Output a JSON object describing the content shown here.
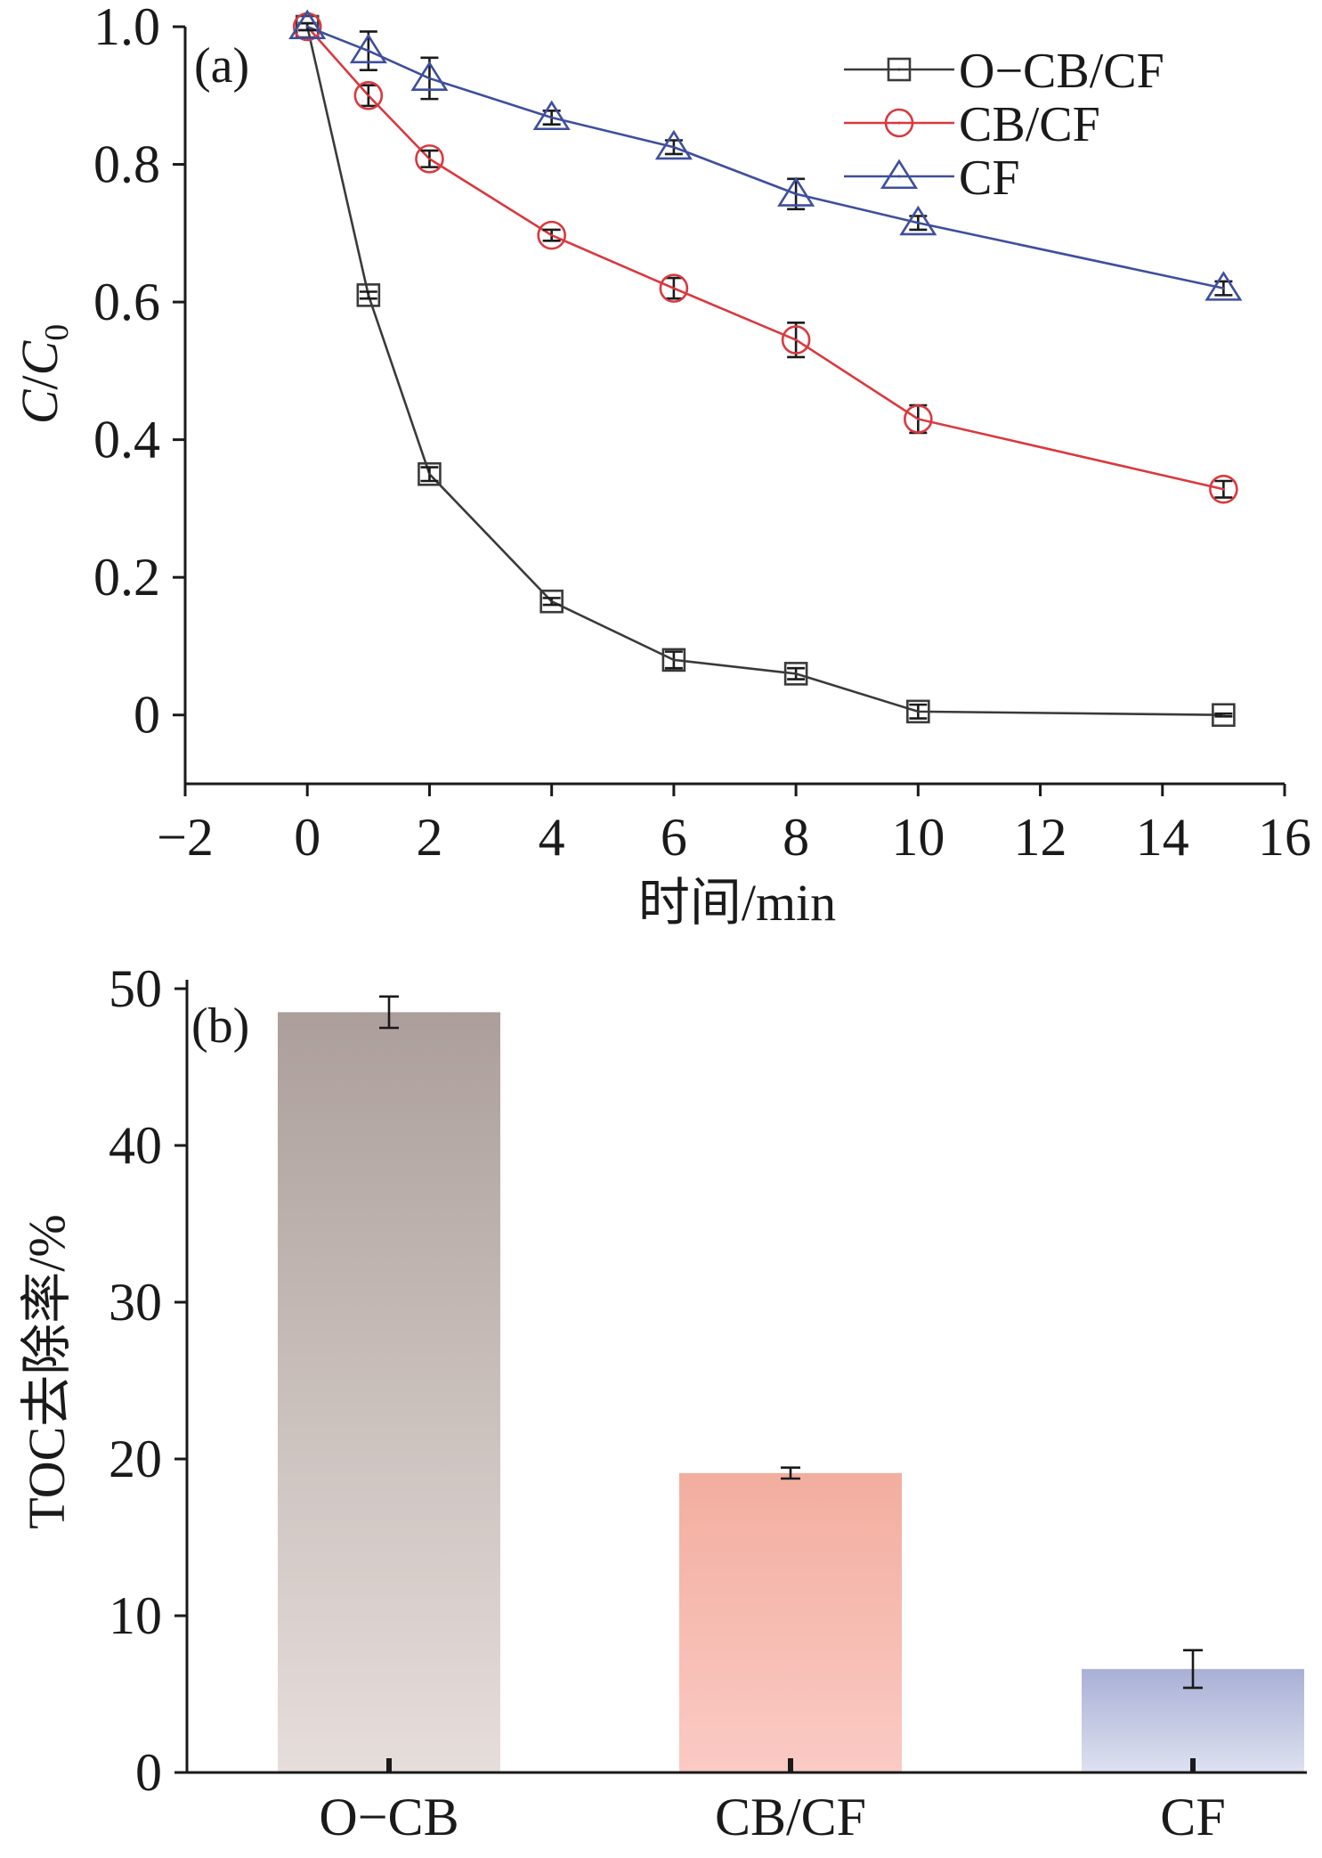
{
  "chart_data": [
    {
      "type": "line",
      "panel_label": "(a)",
      "xlabel": "时间/min",
      "ylabel": {
        "main": "C",
        "sep": "/",
        "sub_base": "C",
        "sub": "0"
      },
      "xlim": [
        -2,
        16
      ],
      "ylim": [
        -0.1,
        1.0
      ],
      "xticks": [
        -2,
        0,
        2,
        4,
        6,
        8,
        10,
        12,
        14,
        16
      ],
      "xtick_labels": [
        "−2",
        "0",
        "2",
        "4",
        "6",
        "8",
        "10",
        "12",
        "14",
        "16"
      ],
      "yticks": [
        0,
        0.2,
        0.4,
        0.6,
        0.8,
        1.0
      ],
      "ytick_labels": [
        "0",
        "0.2",
        "0.4",
        "0.6",
        "0.8",
        "1.0"
      ],
      "grid": false,
      "legend": "top-right",
      "x": [
        0,
        1,
        2,
        4,
        6,
        8,
        10,
        15
      ],
      "series": [
        {
          "name": "O−CB/CF",
          "marker": "square",
          "color": "#3a3a3a",
          "values": [
            1.0,
            0.61,
            0.35,
            0.165,
            0.08,
            0.06,
            0.005,
            0.0
          ],
          "errors": [
            0.005,
            0.005,
            0.01,
            0.005,
            0.012,
            0.008,
            0.01,
            0.002
          ]
        },
        {
          "name": "CB/CF",
          "marker": "circle",
          "color": "#d9393e",
          "values": [
            1.0,
            0.9,
            0.808,
            0.697,
            0.62,
            0.545,
            0.43,
            0.328
          ],
          "errors": [
            0.005,
            0.015,
            0.012,
            0.008,
            0.015,
            0.025,
            0.02,
            0.012
          ]
        },
        {
          "name": "CF",
          "marker": "triangle",
          "color": "#3e4f9e",
          "values": [
            1.0,
            0.965,
            0.925,
            0.868,
            0.825,
            0.757,
            0.715,
            0.62
          ],
          "errors": [
            0.005,
            0.028,
            0.03,
            0.01,
            0.01,
            0.022,
            0.01,
            0.01
          ]
        }
      ]
    },
    {
      "type": "bar",
      "panel_label": "(b)",
      "ylabel": "TOC去除率/%",
      "categories": [
        "O−CB",
        "CB/CF",
        "CF"
      ],
      "values": [
        48.5,
        19.1,
        6.6
      ],
      "errors": [
        1.0,
        0.35,
        1.2
      ],
      "ylim": [
        0,
        50
      ],
      "yticks": [
        0,
        10,
        20,
        30,
        40,
        50
      ],
      "ytick_labels": [
        "0",
        "10",
        "20",
        "30",
        "40",
        "50"
      ],
      "grid": false,
      "bar_colors": [
        {
          "top": "#ac9f9b",
          "bottom": "#e6dedb"
        },
        {
          "top": "#f2ae9f",
          "bottom": "#fbcac4"
        },
        {
          "top": "#a9b0d6",
          "bottom": "#dde1f0"
        }
      ]
    }
  ]
}
